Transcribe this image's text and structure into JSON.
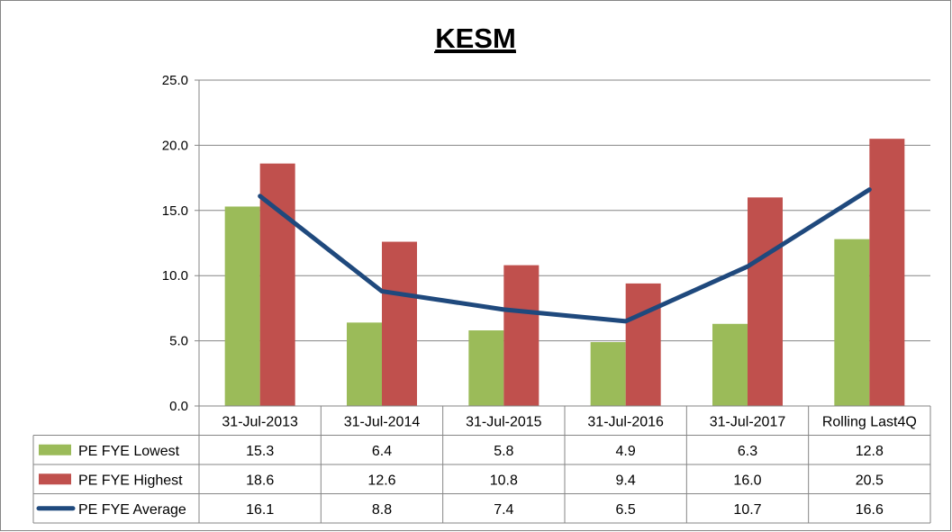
{
  "chart_data": {
    "type": "bar",
    "title": "KESM",
    "categories": [
      "31-Jul-2013",
      "31-Jul-2014",
      "31-Jul-2015",
      "31-Jul-2016",
      "31-Jul-2017",
      "Rolling Last4Q"
    ],
    "ylim": [
      0,
      25
    ],
    "yticks": [
      "0.0",
      "5.0",
      "10.0",
      "15.0",
      "20.0",
      "25.0"
    ],
    "grid": true,
    "legend": "data-table",
    "series": [
      {
        "name": "PE FYE Lowest",
        "type": "bar",
        "color": "#9BBB59",
        "values": [
          15.3,
          6.4,
          5.8,
          4.9,
          6.3,
          12.8
        ],
        "labels": [
          "15.3",
          "6.4",
          "5.8",
          "4.9",
          "6.3",
          "12.8"
        ]
      },
      {
        "name": "PE FYE Highest",
        "type": "bar",
        "color": "#C0504D",
        "values": [
          18.6,
          12.6,
          10.8,
          9.4,
          16.0,
          20.5
        ],
        "labels": [
          "18.6",
          "12.6",
          "10.8",
          "9.4",
          "16.0",
          "20.5"
        ]
      },
      {
        "name": "PE FYE Average",
        "type": "line",
        "color": "#1F497D",
        "values": [
          16.1,
          8.8,
          7.4,
          6.5,
          10.7,
          16.6
        ],
        "labels": [
          "16.1",
          "8.8",
          "7.4",
          "6.5",
          "10.7",
          "16.6"
        ]
      }
    ]
  }
}
